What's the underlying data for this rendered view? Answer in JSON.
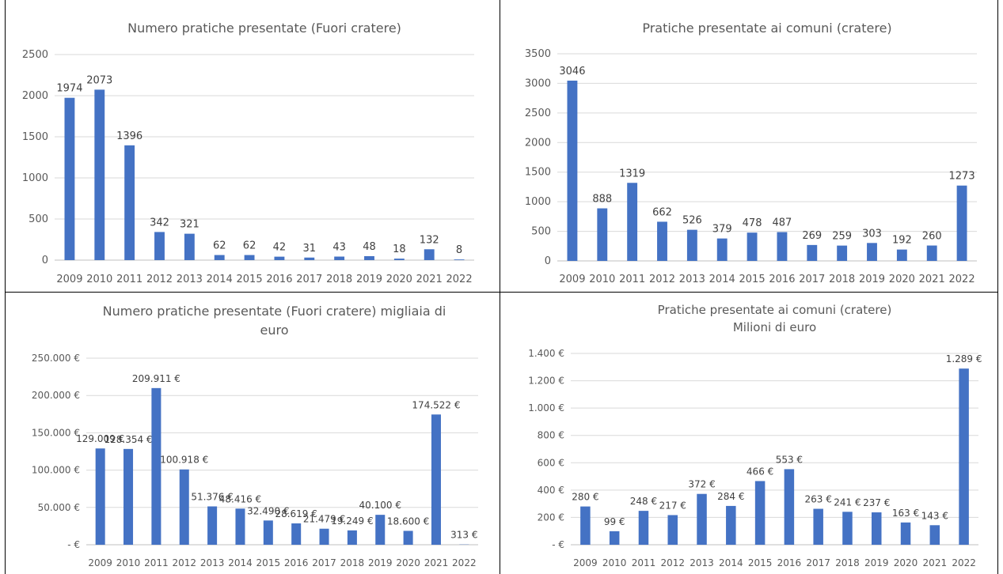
{
  "years": [
    "2009",
    "2010",
    "2011",
    "2012",
    "2013",
    "2014",
    "2015",
    "2016",
    "2017",
    "2018",
    "2019",
    "2020",
    "2021",
    "2022"
  ],
  "bar_color": "#4472C4",
  "chart_data": [
    {
      "type": "bar",
      "title": "Numero pratiche presentate (Fuori cratere)",
      "title2": "",
      "categories": [
        "2009",
        "2010",
        "2011",
        "2012",
        "2013",
        "2014",
        "2015",
        "2016",
        "2017",
        "2018",
        "2019",
        "2020",
        "2021",
        "2022"
      ],
      "values": [
        1974,
        2073,
        1396,
        342,
        321,
        62,
        62,
        42,
        31,
        43,
        48,
        18,
        132,
        8
      ],
      "value_labels": [
        "1974",
        "2073",
        "1396",
        "342",
        "321",
        "62",
        "62",
        "42",
        "31",
        "43",
        "48",
        "18",
        "132",
        "8"
      ],
      "ylim": [
        0,
        2500
      ],
      "yticks": [
        0,
        500,
        1000,
        1500,
        2000,
        2500
      ],
      "ytick_labels": [
        "0",
        "500",
        "1000",
        "1500",
        "2000",
        "2500"
      ],
      "grid": true,
      "legend": "none"
    },
    {
      "type": "bar",
      "title": "Pratiche presentate ai comuni (cratere)",
      "title2": "",
      "categories": [
        "2009",
        "2010",
        "2011",
        "2012",
        "2013",
        "2014",
        "2015",
        "2016",
        "2017",
        "2018",
        "2019",
        "2020",
        "2021",
        "2022"
      ],
      "values": [
        3046,
        888,
        1319,
        662,
        526,
        379,
        478,
        487,
        269,
        259,
        303,
        192,
        260,
        1273
      ],
      "value_labels": [
        "3046",
        "888",
        "1319",
        "662",
        "526",
        "379",
        "478",
        "487",
        "269",
        "259",
        "303",
        "192",
        "260",
        "1273"
      ],
      "ylim": [
        0,
        3500
      ],
      "yticks": [
        0,
        500,
        1000,
        1500,
        2000,
        2500,
        3000,
        3500
      ],
      "ytick_labels": [
        "0",
        "500",
        "1000",
        "1500",
        "2000",
        "2500",
        "3000",
        "3500"
      ],
      "grid": true,
      "legend": "none"
    },
    {
      "type": "bar",
      "title": "Numero pratiche presentate (Fuori cratere) migliaia di",
      "title2": "euro",
      "categories": [
        "2009",
        "2010",
        "2011",
        "2012",
        "2013",
        "2014",
        "2015",
        "2016",
        "2017",
        "2018",
        "2019",
        "2020",
        "2021",
        "2022"
      ],
      "values": [
        129009,
        128354,
        209911,
        100918,
        51376,
        48416,
        32490,
        28619,
        21479,
        19249,
        40100,
        18600,
        174522,
        313
      ],
      "value_labels": [
        "129.009 €",
        "128.354 €",
        "209.911 €",
        "100.918 €",
        "51.376 €",
        "48.416 €",
        "32.490 €",
        "28.619 €",
        "21.479 €",
        "19.249 €",
        "40.100 €",
        "18.600 €",
        "174.522 €",
        "313 €"
      ],
      "ylim": [
        0,
        250000
      ],
      "yticks": [
        0,
        50000,
        100000,
        150000,
        200000,
        250000
      ],
      "ytick_labels": [
        "-   €",
        "50.000 €",
        "100.000 €",
        "150.000 €",
        "200.000 €",
        "250.000 €"
      ],
      "grid": true,
      "legend": "none"
    },
    {
      "type": "bar",
      "title": "Pratiche presentate ai comuni (cratere)",
      "title2": "Milioni di euro",
      "categories": [
        "2009",
        "2010",
        "2011",
        "2012",
        "2013",
        "2014",
        "2015",
        "2016",
        "2017",
        "2018",
        "2019",
        "2020",
        "2021",
        "2022"
      ],
      "values": [
        280,
        99,
        248,
        217,
        372,
        284,
        466,
        553,
        263,
        241,
        237,
        163,
        143,
        1289
      ],
      "value_labels": [
        "280 €",
        "99 €",
        "248 €",
        "217 €",
        "372 €",
        "284 €",
        "466 €",
        "553 €",
        "263 €",
        "241 €",
        "237 €",
        "163 €",
        "143 €",
        "1.289 €"
      ],
      "ylim": [
        0,
        1400
      ],
      "yticks": [
        0,
        200,
        400,
        600,
        800,
        1000,
        1200,
        1400
      ],
      "ytick_labels": [
        "-   €",
        "200 €",
        "400 €",
        "600 €",
        "800 €",
        "1.000 €",
        "1.200 €",
        "1.400 €"
      ],
      "grid": true,
      "legend": "none"
    }
  ]
}
